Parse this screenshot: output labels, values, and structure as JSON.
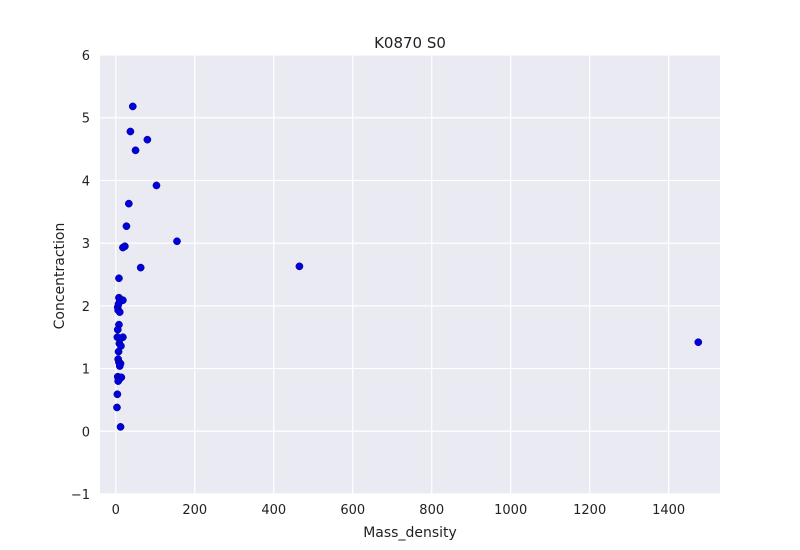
{
  "chart_data": {
    "type": "scatter",
    "title": "K0870 S0",
    "xlabel": "Mass_density",
    "ylabel": "Concentraction",
    "xlim": [
      -40,
      1530
    ],
    "ylim": [
      -1,
      6
    ],
    "xticks": [
      0,
      200,
      400,
      600,
      800,
      1000,
      1200,
      1400
    ],
    "yticks": [
      -1,
      0,
      1,
      2,
      3,
      4,
      5,
      6
    ],
    "xtick_labels": [
      "0",
      "200",
      "400",
      "600",
      "800",
      "1000",
      "1200",
      "1400"
    ],
    "ytick_labels": [
      "−1",
      "0",
      "1",
      "2",
      "3",
      "4",
      "5",
      "6"
    ],
    "grid": true,
    "colors": {
      "background": "#eaeaf2",
      "grid": "#ffffff",
      "point": "#0000dd"
    },
    "points": [
      {
        "x": 43,
        "y": 5.18
      },
      {
        "x": 37,
        "y": 4.78
      },
      {
        "x": 80,
        "y": 4.65
      },
      {
        "x": 50,
        "y": 4.48
      },
      {
        "x": 103,
        "y": 3.92
      },
      {
        "x": 33,
        "y": 3.63
      },
      {
        "x": 27,
        "y": 3.27
      },
      {
        "x": 155,
        "y": 3.03
      },
      {
        "x": 23,
        "y": 2.95
      },
      {
        "x": 18,
        "y": 2.93
      },
      {
        "x": 63,
        "y": 2.61
      },
      {
        "x": 465,
        "y": 2.63
      },
      {
        "x": 8,
        "y": 2.44
      },
      {
        "x": 8,
        "y": 2.13
      },
      {
        "x": 10,
        "y": 2.1
      },
      {
        "x": 18,
        "y": 2.09
      },
      {
        "x": 7,
        "y": 2.03
      },
      {
        "x": 5,
        "y": 1.98
      },
      {
        "x": 6,
        "y": 1.93
      },
      {
        "x": 10,
        "y": 1.9
      },
      {
        "x": 8,
        "y": 1.7
      },
      {
        "x": 5,
        "y": 1.62
      },
      {
        "x": 4,
        "y": 1.5
      },
      {
        "x": 12,
        "y": 1.48
      },
      {
        "x": 18,
        "y": 1.5
      },
      {
        "x": 9,
        "y": 1.4
      },
      {
        "x": 13,
        "y": 1.36
      },
      {
        "x": 7,
        "y": 1.27
      },
      {
        "x": 6,
        "y": 1.15
      },
      {
        "x": 8,
        "y": 1.1
      },
      {
        "x": 12,
        "y": 1.08
      },
      {
        "x": 10,
        "y": 1.04
      },
      {
        "x": 5,
        "y": 0.87
      },
      {
        "x": 14,
        "y": 0.86
      },
      {
        "x": 8,
        "y": 0.82
      },
      {
        "x": 6,
        "y": 0.8
      },
      {
        "x": 4,
        "y": 0.59
      },
      {
        "x": 3,
        "y": 0.38
      },
      {
        "x": 12,
        "y": 0.07
      },
      {
        "x": 1475,
        "y": 1.42
      }
    ]
  }
}
